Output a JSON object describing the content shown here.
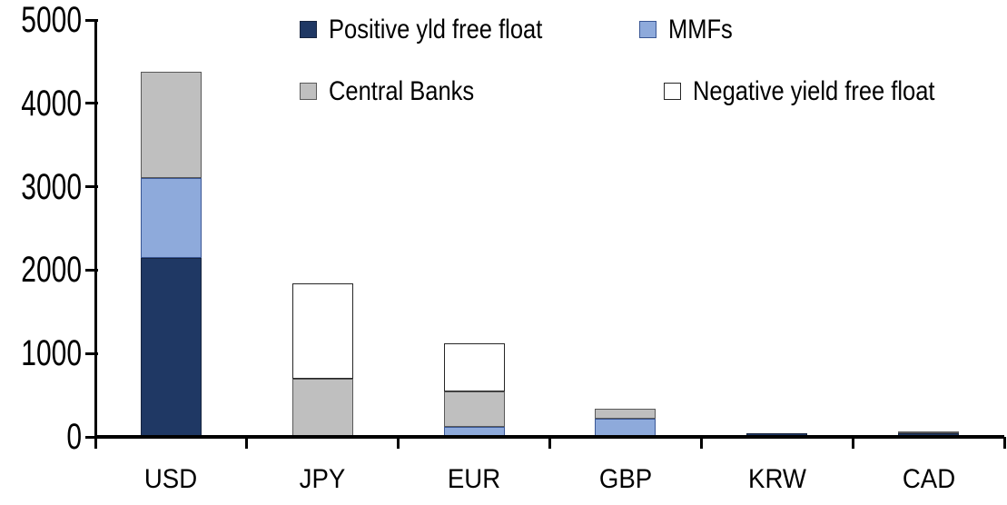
{
  "chart_data": {
    "type": "bar",
    "stacked": true,
    "title": "",
    "xlabel": "",
    "ylabel": "",
    "categories": [
      "USD",
      "JPY",
      "EUR",
      "GBP",
      "KRW",
      "CAD"
    ],
    "series": [
      {
        "name": "Positive yld free float",
        "color": "#1F3864",
        "border_color": "#16243F",
        "values": [
          2150,
          0,
          0,
          0,
          40,
          40
        ]
      },
      {
        "name": "MMFs",
        "color": "#8EAADB",
        "border_color": "#3A5795",
        "values": [
          950,
          0,
          115,
          220,
          0,
          0
        ]
      },
      {
        "name": "Central Banks",
        "color": "#BFBFBF",
        "border_color": "#595959",
        "values": [
          1280,
          700,
          430,
          115,
          0,
          25
        ]
      },
      {
        "name": "Negative yield free float",
        "color": "#FFFFFF",
        "border_color": "#262626",
        "values": [
          0,
          1140,
          575,
          0,
          0,
          0
        ]
      }
    ],
    "totals_by_category": [
      4380,
      1840,
      1120,
      335,
      40,
      65
    ],
    "ylim": [
      0,
      5000
    ],
    "ytick_step": 1000,
    "ytick_labels": [
      "0",
      "1000",
      "2000",
      "3000",
      "4000",
      "5000"
    ],
    "grid": false,
    "legend_position": "top, two columns, two rows",
    "legend_order": [
      "Positive yld free float",
      "MMFs",
      "Central Banks",
      "Negative yield free float"
    ]
  },
  "colors": {
    "axis": "#000000",
    "background": "#FFFFFF",
    "text": "#000000"
  }
}
